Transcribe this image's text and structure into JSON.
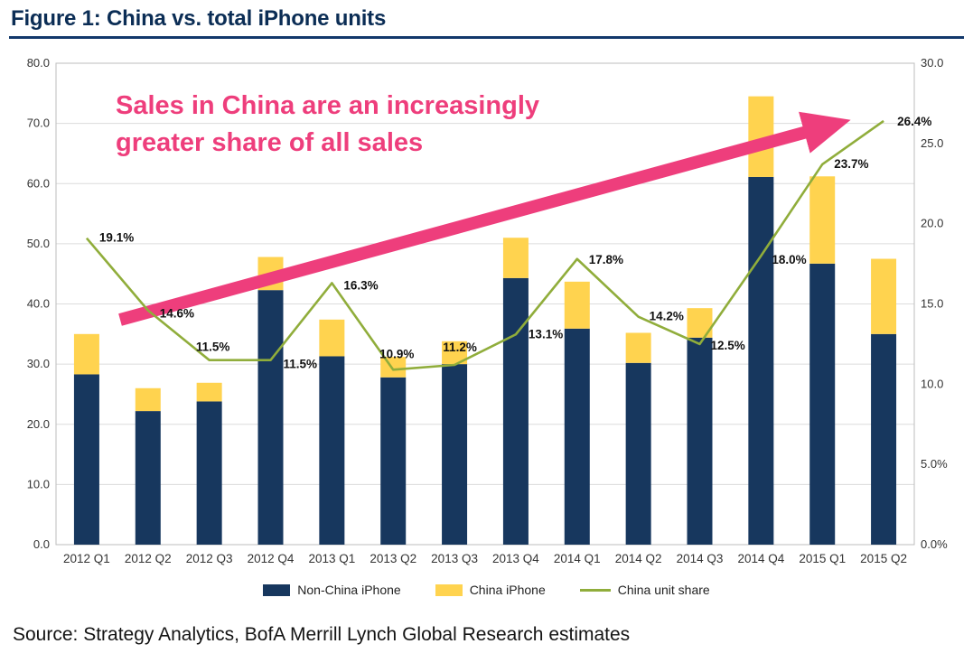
{
  "figure": {
    "title": "Figure 1: China vs. total iPhone units",
    "source": "Source: Strategy Analytics, BofA Merrill Lynch Global Research estimates"
  },
  "annotation": {
    "line1": "Sales in China are an increasingly",
    "line2": "greater share of all sales",
    "color": "#ee3e7c"
  },
  "legend": [
    {
      "label": "Non-China iPhone",
      "type": "box",
      "color": "#17375e"
    },
    {
      "label": "China iPhone",
      "type": "box",
      "color": "#ffd34f"
    },
    {
      "label": "China unit share",
      "type": "line",
      "color": "#90ad3b"
    }
  ],
  "chart_data": {
    "type": "bar+line",
    "title": "Figure 1: China vs. total iPhone units",
    "categories": [
      "2012 Q1",
      "2012 Q2",
      "2012 Q3",
      "2012 Q4",
      "2013 Q1",
      "2013 Q2",
      "2013 Q3",
      "2013 Q4",
      "2014 Q1",
      "2014 Q2",
      "2014 Q3",
      "2014 Q4",
      "2015 Q1",
      "2015 Q2"
    ],
    "series": [
      {
        "name": "Non-China iPhone",
        "type": "bar",
        "stacked": true,
        "axis": "left",
        "color": "#17375e",
        "values": [
          28.3,
          22.2,
          23.8,
          42.3,
          31.3,
          27.8,
          30.0,
          44.3,
          35.9,
          30.2,
          34.4,
          61.1,
          46.7,
          35.0
        ]
      },
      {
        "name": "China iPhone",
        "type": "bar",
        "stacked": true,
        "axis": "left",
        "color": "#ffd34f",
        "values": [
          6.7,
          3.8,
          3.1,
          5.5,
          6.1,
          3.4,
          3.8,
          6.7,
          7.8,
          5.0,
          4.9,
          13.4,
          14.5,
          12.5
        ]
      },
      {
        "name": "China unit share",
        "type": "line",
        "axis": "right",
        "color": "#90ad3b",
        "values": [
          19.1,
          14.6,
          11.5,
          11.5,
          16.3,
          10.9,
          11.2,
          13.1,
          17.8,
          14.2,
          12.5,
          18.0,
          23.7,
          26.4
        ],
        "labels": [
          "19.1%",
          "14.6%",
          "11.5%",
          "11.5%",
          "16.3%",
          "10.9%",
          "11.2%",
          "13.1%",
          "17.8%",
          "14.2%",
          "12.5%",
          "18.0%",
          "23.7%",
          "26.4%"
        ]
      }
    ],
    "left_axis": {
      "min": 0,
      "max": 80,
      "step": 10,
      "tick_labels": [
        "0.0",
        "10.0",
        "20.0",
        "30.0",
        "40.0",
        "50.0",
        "60.0",
        "70.0",
        "80.0"
      ]
    },
    "right_axis": {
      "min": 0,
      "max": 30,
      "step": 5,
      "tick_labels": [
        "0.0%",
        "5.0%",
        "10.0",
        "15.0",
        "20.0",
        "25.0",
        "30.0"
      ]
    },
    "grid": true,
    "legend_position": "bottom"
  }
}
